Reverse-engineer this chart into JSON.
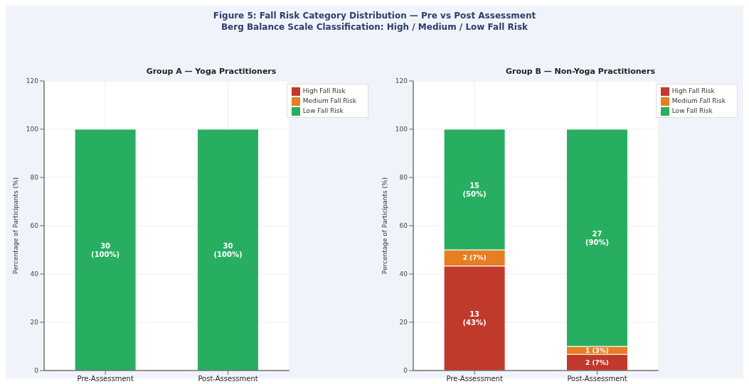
{
  "chart_data": [
    {
      "type": "bar",
      "stacked": true,
      "title": "Group A — Yoga Practitioners",
      "annotations": [
        "Figure 5: Fall Risk Category Distribution — Pre vs Post Assessment",
        "Berg Balance Scale Classification: High / Medium / Low Fall Risk"
      ],
      "ylabel": "Percentage of Participants (%)",
      "categories": [
        "Pre-Assessment",
        "Post-Assessment"
      ],
      "ylim": [
        0,
        120
      ],
      "yticks": [
        0,
        20,
        40,
        60,
        80,
        100,
        120
      ],
      "grid": true,
      "legend": "top right",
      "series": [
        {
          "name": "High Fall Risk",
          "color": "#c0392b",
          "values": [
            0,
            0
          ],
          "value_labels": [
            null,
            null
          ]
        },
        {
          "name": "Medium Fall Risk",
          "color": "#e67e22",
          "values": [
            0,
            0
          ],
          "value_labels": [
            null,
            null
          ]
        },
        {
          "name": "Low Fall Risk",
          "color": "#27ae60",
          "values": [
            100,
            100
          ],
          "value_labels": [
            "30 (100%)",
            "30 (100%)"
          ]
        }
      ]
    },
    {
      "type": "bar",
      "stacked": true,
      "title": "Group B — Non-Yoga Practitioners",
      "ylabel": "Percentage of Participants (%)",
      "categories": [
        "Pre-Assessment",
        "Post-Assessment"
      ],
      "ylim": [
        0,
        120
      ],
      "yticks": [
        0,
        20,
        40,
        60,
        80,
        100,
        120
      ],
      "grid": true,
      "legend": "top right",
      "series": [
        {
          "name": "High Fall Risk",
          "color": "#c0392b",
          "values": [
            43.3,
            6.7
          ],
          "value_labels": [
            "13 (43%)",
            "2 (7%)"
          ]
        },
        {
          "name": "Medium Fall Risk",
          "color": "#e67e22",
          "values": [
            6.7,
            3.3
          ],
          "value_labels": [
            "2 (7%)",
            "1 (3%)"
          ]
        },
        {
          "name": "Low Fall Risk",
          "color": "#27ae60",
          "values": [
            50,
            90
          ],
          "value_labels": [
            "15 (50%)",
            "27 (90%)"
          ]
        }
      ]
    }
  ]
}
